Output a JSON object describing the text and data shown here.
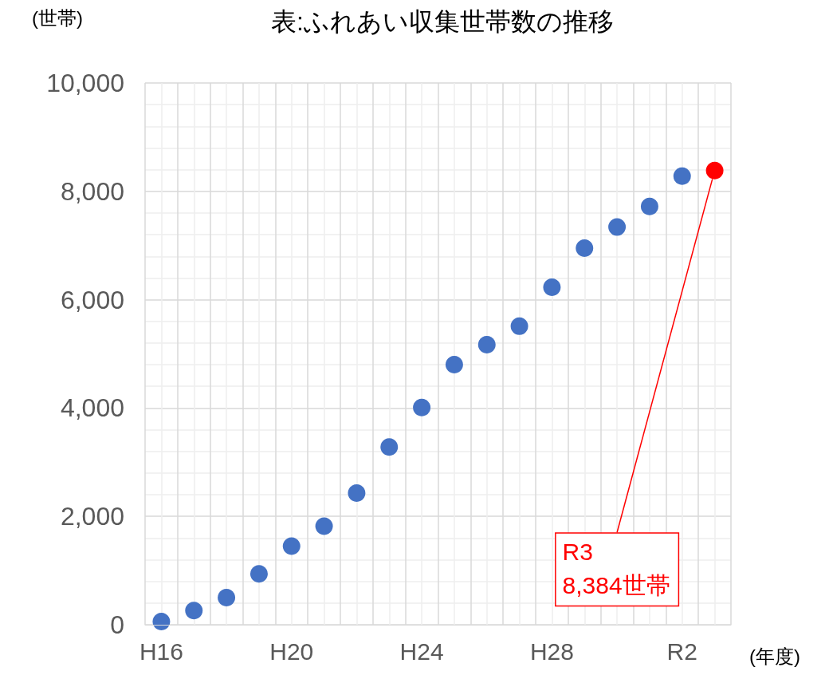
{
  "chart_data": {
    "type": "scatter",
    "title": "表:ふれあい収集世帯数の推移",
    "xlabel": "(年度)",
    "ylabel": "(世帯)",
    "categories": [
      "H16",
      null,
      null,
      null,
      "H20",
      null,
      null,
      null,
      "H24",
      null,
      null,
      null,
      "H28",
      null,
      null,
      null,
      "R2",
      null
    ],
    "series": [
      {
        "color": "#4472c4",
        "values": [
          60,
          260,
          500,
          940,
          1450,
          1820,
          2430,
          3280,
          4010,
          4800,
          5170,
          5510,
          6230,
          6950,
          7340,
          7720,
          8280,
          null
        ]
      },
      {
        "color": "#ff0000",
        "values": [
          null,
          null,
          null,
          null,
          null,
          null,
          null,
          null,
          null,
          null,
          null,
          null,
          null,
          null,
          null,
          null,
          null,
          8384
        ],
        "value_labels": [
          null,
          null,
          null,
          null,
          null,
          null,
          null,
          null,
          null,
          null,
          null,
          null,
          null,
          null,
          null,
          null,
          null,
          "R3\n8,384世帯"
        ]
      }
    ],
    "ylim": [
      0,
      10000
    ],
    "yticks": [
      0,
      {
        "value": 2000,
        "label": "2,000"
      },
      {
        "value": 4000,
        "label": "4,000"
      },
      {
        "value": 6000,
        "label": "6,000"
      },
      {
        "value": 8000,
        "label": "8,000"
      },
      {
        "value": 10000,
        "label": "10,000"
      }
    ],
    "grid": true,
    "marker": "circle"
  }
}
